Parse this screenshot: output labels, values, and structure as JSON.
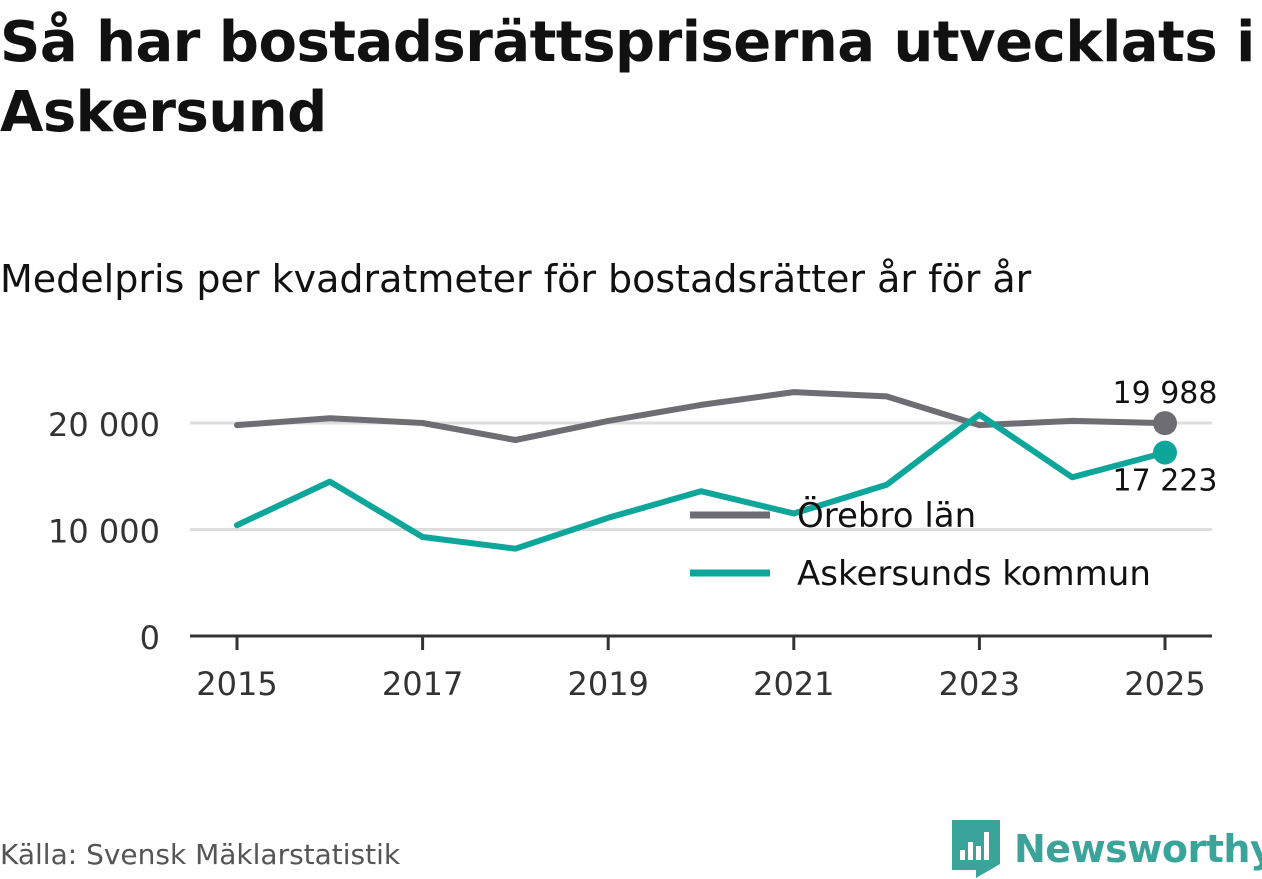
{
  "title": "Så har bostadsrättspriserna utvecklats i Askersund",
  "subtitle": "Medelpris per kvadratmeter för bostadsrätter år för år",
  "source": "Källa: Svensk Mäklarstatistik",
  "brand": "Newsworthy",
  "colors": {
    "orebro": "#6e6d73",
    "askersund": "#0ea69a",
    "grid": "#dddddd",
    "axis": "#333333",
    "brand": "#3aa39a"
  },
  "chart_data": {
    "type": "line",
    "title": "Så har bostadsrättspriserna utvecklats i Askersund",
    "subtitle": "Medelpris per kvadratmeter för bostadsrätter år för år",
    "xlabel": "",
    "ylabel": "",
    "x": [
      2015,
      2016,
      2017,
      2018,
      2019,
      2020,
      2021,
      2022,
      2023,
      2024,
      2025
    ],
    "xticks": [
      "2015",
      "2017",
      "2019",
      "2021",
      "2023",
      "2025"
    ],
    "yticks": [
      {
        "value": 0,
        "label": "0"
      },
      {
        "value": 10000,
        "label": "10 000"
      },
      {
        "value": 20000,
        "label": "20 000"
      }
    ],
    "ylim": [
      0,
      22000
    ],
    "grid": true,
    "legend_position": "lower-right",
    "series": [
      {
        "name": "Örebro län",
        "color": "#6e6d73",
        "values": [
          19800,
          20450,
          20000,
          18400,
          20200,
          21700,
          22900,
          22500,
          19800,
          20200,
          19988
        ],
        "end_label": "19 988"
      },
      {
        "name": "Askersunds kommun",
        "color": "#0ea69a",
        "values": [
          10400,
          14500,
          9300,
          8200,
          11100,
          13600,
          11500,
          14200,
          20800,
          14900,
          17223
        ],
        "end_label": "17 223"
      }
    ]
  }
}
